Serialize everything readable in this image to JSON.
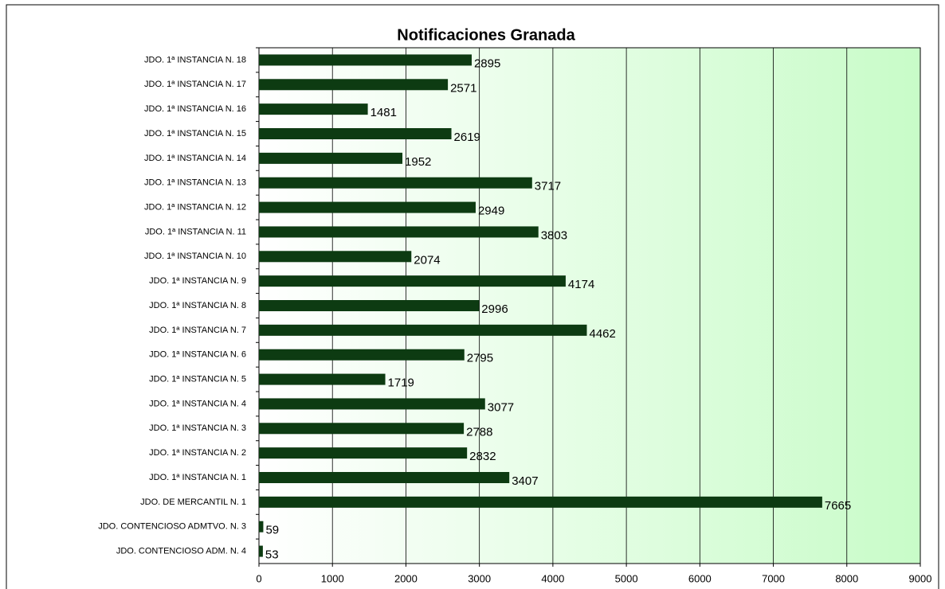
{
  "chart_data": {
    "type": "barh",
    "title": "Notificaciones Granada",
    "categories": [
      "JDO. 1ª INSTANCIA N. 18",
      "JDO. 1ª INSTANCIA N. 17",
      "JDO. 1ª INSTANCIA N. 16",
      "JDO. 1ª INSTANCIA N. 15",
      "JDO. 1ª INSTANCIA N. 14",
      "JDO. 1ª INSTANCIA N. 13",
      "JDO. 1ª INSTANCIA N. 12",
      "JDO. 1ª INSTANCIA N. 11",
      "JDO. 1ª INSTANCIA N. 10",
      "JDO. 1ª INSTANCIA N. 9",
      "JDO. 1ª INSTANCIA N. 8",
      "JDO. 1ª INSTANCIA N. 7",
      "JDO. 1ª INSTANCIA N. 6",
      "JDO. 1ª INSTANCIA N. 5",
      "JDO. 1ª INSTANCIA N. 4",
      "JDO. 1ª INSTANCIA N. 3",
      "JDO. 1ª INSTANCIA N. 2",
      "JDO. 1ª INSTANCIA N. 1",
      "JDO. DE MERCANTIL N. 1",
      "JDO. CONTENCIOSO ADMTVO. N. 3",
      "JDO. CONTENCIOSO ADM. N. 4"
    ],
    "values": [
      2895,
      2571,
      1481,
      2619,
      1952,
      3717,
      2949,
      3803,
      2074,
      4174,
      2996,
      4462,
      2795,
      1719,
      3077,
      2788,
      2832,
      3407,
      7665,
      59,
      53
    ],
    "color": "#0d3b12",
    "xlim": [
      0,
      9000
    ],
    "xticks": [
      0,
      1000,
      2000,
      3000,
      4000,
      5000,
      6000,
      7000,
      8000,
      9000
    ],
    "grid": true
  }
}
